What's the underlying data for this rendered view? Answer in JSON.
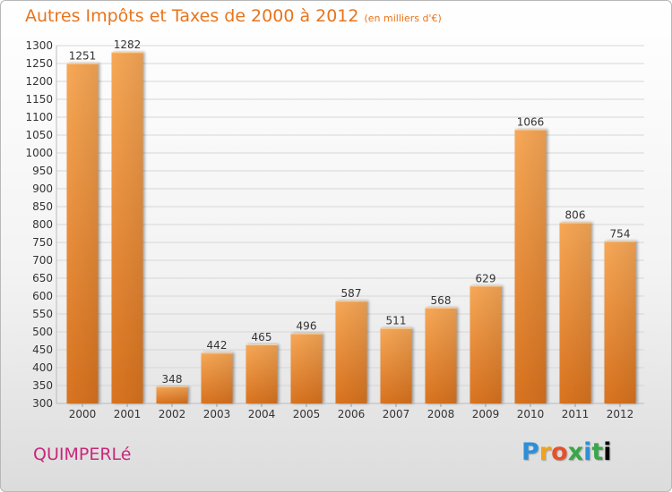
{
  "header": {
    "title": "Autres Impôts et Taxes de 2000 à 2012",
    "unit": "(en milliers d'€)"
  },
  "footer": {
    "city": "QUIMPERLé",
    "brand": "Proxiti"
  },
  "colors": {
    "bar_light": "#f7a857",
    "bar_dark": "#d9731f",
    "grid": "#d6d6d6",
    "axis_text": "#333333",
    "title": "#e8741c",
    "city": "#c8287a"
  },
  "chart_data": {
    "type": "bar",
    "title": "Autres Impôts et Taxes de 2000 à 2012",
    "subtitle": "(en milliers d'€)",
    "xlabel": "",
    "ylabel": "",
    "categories": [
      "2000",
      "2001",
      "2002",
      "2003",
      "2004",
      "2005",
      "2006",
      "2007",
      "2008",
      "2009",
      "2010",
      "2011",
      "2012"
    ],
    "values": [
      1251,
      1282,
      348,
      442,
      465,
      496,
      587,
      511,
      568,
      629,
      1066,
      806,
      754
    ],
    "ylim": [
      300,
      1300
    ],
    "ytick_step": 50,
    "grid": true,
    "legend": "none",
    "data_labels": true
  }
}
